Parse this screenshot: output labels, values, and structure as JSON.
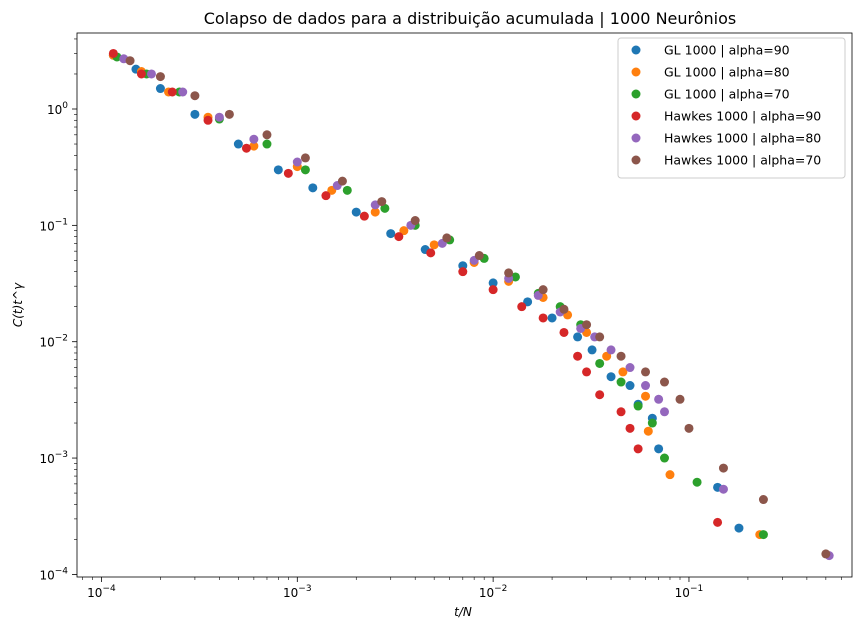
{
  "chart_data": {
    "type": "scatter",
    "title": "Colapso de dados para a distribuição acumulada | 1000 Neurônios",
    "xlabel": "t/N",
    "ylabel": "C(t)t^γ",
    "xscale": "log",
    "yscale": "log",
    "xlim": [
      7.5e-05,
      0.68
    ],
    "ylim": [
      9.5e-05,
      4.5
    ],
    "x_ticks": [
      {
        "value": 0.0001,
        "base": "10",
        "exp": "−4"
      },
      {
        "value": 0.001,
        "base": "10",
        "exp": "−3"
      },
      {
        "value": 0.01,
        "base": "10",
        "exp": "−2"
      },
      {
        "value": 0.1,
        "base": "10",
        "exp": "−1"
      }
    ],
    "y_ticks": [
      {
        "value": 0.0001,
        "base": "10",
        "exp": "−4"
      },
      {
        "value": 0.001,
        "base": "10",
        "exp": "−3"
      },
      {
        "value": 0.01,
        "base": "10",
        "exp": "−2"
      },
      {
        "value": 0.1,
        "base": "10",
        "exp": "−1"
      },
      {
        "value": 1,
        "base": "10",
        "exp": "0"
      }
    ],
    "grid": false,
    "legend_position": "upper-right",
    "series": [
      {
        "name": "GL 1000 | alpha=90",
        "color": "#1f77b4",
        "x": [
          0.000115,
          0.00015,
          0.0002,
          0.0003,
          0.0005,
          0.0008,
          0.0012,
          0.002,
          0.003,
          0.0045,
          0.007,
          0.01,
          0.015,
          0.02,
          0.027,
          0.032,
          0.04,
          0.05,
          0.055,
          0.065,
          0.07,
          0.14,
          0.18
        ],
        "y": [
          2.9,
          2.2,
          1.5,
          0.9,
          0.5,
          0.3,
          0.21,
          0.13,
          0.085,
          0.062,
          0.045,
          0.032,
          0.022,
          0.016,
          0.011,
          0.0085,
          0.005,
          0.0042,
          0.0029,
          0.0022,
          0.0012,
          0.00056,
          0.00025
        ]
      },
      {
        "name": "GL 1000 | alpha=80",
        "color": "#ff7f0e",
        "x": [
          0.000115,
          0.00016,
          0.00022,
          0.00035,
          0.0006,
          0.001,
          0.0015,
          0.0025,
          0.0035,
          0.005,
          0.008,
          0.012,
          0.018,
          0.024,
          0.03,
          0.038,
          0.046,
          0.06,
          0.062,
          0.08,
          0.23
        ],
        "y": [
          2.9,
          2.1,
          1.4,
          0.85,
          0.48,
          0.32,
          0.2,
          0.13,
          0.09,
          0.068,
          0.048,
          0.033,
          0.024,
          0.017,
          0.012,
          0.0075,
          0.0055,
          0.0034,
          0.0017,
          0.00072,
          0.00022
        ]
      },
      {
        "name": "GL 1000 | alpha=70",
        "color": "#2ca02c",
        "x": [
          0.00012,
          0.00017,
          0.00025,
          0.0004,
          0.0007,
          0.0011,
          0.0018,
          0.0028,
          0.004,
          0.006,
          0.009,
          0.013,
          0.017,
          0.022,
          0.028,
          0.035,
          0.045,
          0.055,
          0.065,
          0.075,
          0.11,
          0.24
        ],
        "y": [
          2.8,
          2.0,
          1.4,
          0.82,
          0.5,
          0.3,
          0.2,
          0.14,
          0.1,
          0.075,
          0.052,
          0.036,
          0.026,
          0.02,
          0.014,
          0.0065,
          0.0045,
          0.0028,
          0.002,
          0.001,
          0.00062,
          0.00022
        ]
      },
      {
        "name": "Hawkes 1000 | alpha=90",
        "color": "#d62728",
        "x": [
          0.000115,
          0.00016,
          0.00023,
          0.00035,
          0.00055,
          0.0009,
          0.0014,
          0.0022,
          0.0033,
          0.0048,
          0.007,
          0.01,
          0.014,
          0.018,
          0.023,
          0.027,
          0.03,
          0.035,
          0.045,
          0.05,
          0.055,
          0.14
        ],
        "y": [
          3.0,
          2.0,
          1.4,
          0.8,
          0.46,
          0.28,
          0.18,
          0.12,
          0.08,
          0.058,
          0.04,
          0.028,
          0.02,
          0.016,
          0.012,
          0.0075,
          0.0055,
          0.0035,
          0.0025,
          0.0018,
          0.0012,
          0.00028
        ]
      },
      {
        "name": "Hawkes 1000 | alpha=80",
        "color": "#9467bd",
        "x": [
          0.00013,
          0.00018,
          0.00026,
          0.0004,
          0.0006,
          0.001,
          0.0016,
          0.0025,
          0.0038,
          0.0055,
          0.008,
          0.012,
          0.017,
          0.022,
          0.028,
          0.033,
          0.04,
          0.05,
          0.06,
          0.07,
          0.075,
          0.15,
          0.52
        ],
        "y": [
          2.7,
          2.0,
          1.4,
          0.85,
          0.55,
          0.35,
          0.22,
          0.15,
          0.1,
          0.07,
          0.05,
          0.035,
          0.025,
          0.018,
          0.013,
          0.011,
          0.0085,
          0.006,
          0.0042,
          0.0032,
          0.0025,
          0.00054,
          0.000145
        ]
      },
      {
        "name": "Hawkes 1000 | alpha=70",
        "color": "#8c564b",
        "x": [
          0.00014,
          0.0002,
          0.0003,
          0.00045,
          0.0007,
          0.0011,
          0.0017,
          0.0027,
          0.004,
          0.0058,
          0.0085,
          0.012,
          0.018,
          0.023,
          0.03,
          0.035,
          0.045,
          0.06,
          0.075,
          0.09,
          0.1,
          0.15,
          0.24,
          0.5
        ],
        "y": [
          2.6,
          1.9,
          1.3,
          0.9,
          0.6,
          0.38,
          0.24,
          0.16,
          0.11,
          0.078,
          0.055,
          0.039,
          0.028,
          0.019,
          0.014,
          0.011,
          0.0075,
          0.0055,
          0.0045,
          0.0032,
          0.0018,
          0.00082,
          0.00044,
          0.00015
        ]
      }
    ]
  }
}
